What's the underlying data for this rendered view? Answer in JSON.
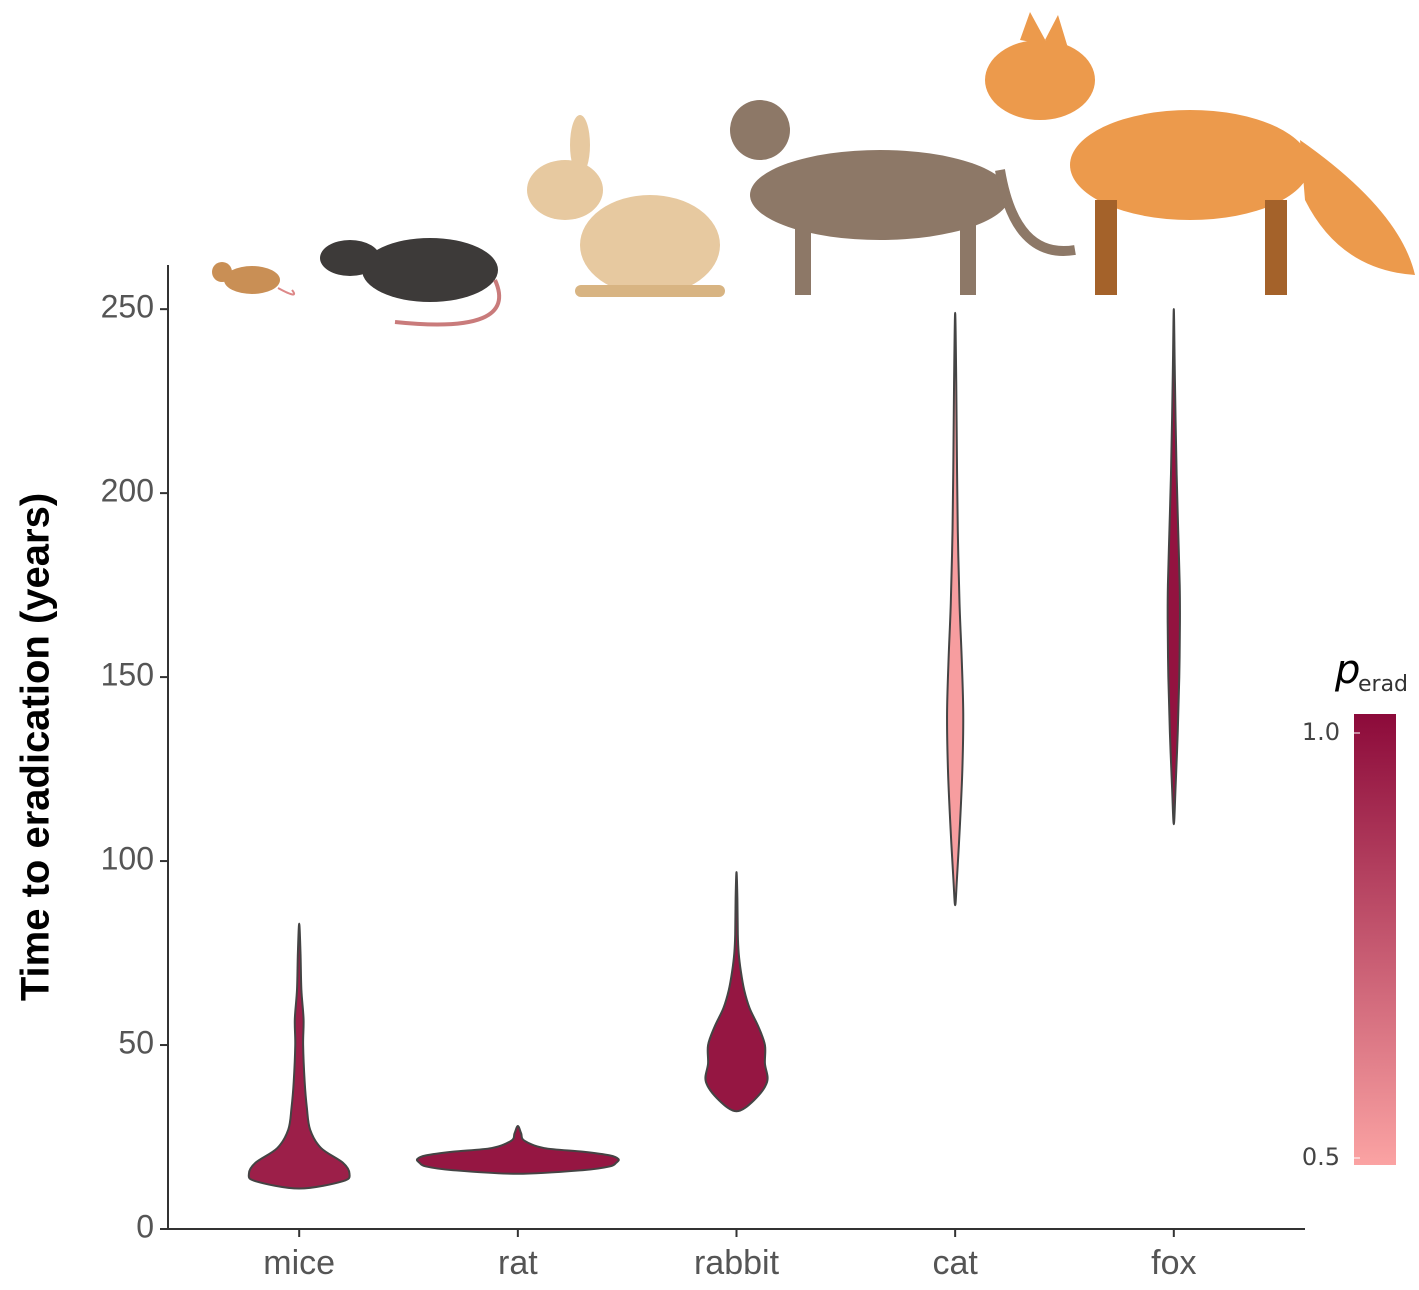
{
  "chart_data": {
    "type": "violin",
    "y_label": "Time to eradication (years)",
    "categories": [
      "mice",
      "rat",
      "rabbit",
      "cat",
      "fox"
    ],
    "ylim": [
      0,
      262
    ],
    "yticks": [
      0,
      50,
      100,
      150,
      200,
      250
    ],
    "violins": [
      {
        "y": [
          11,
          13,
          15,
          18,
          22,
          27,
          33,
          40,
          50,
          57,
          65,
          75,
          83
        ],
        "w": [
          0,
          0.2,
          0.23,
          0.2,
          0.1,
          0.05,
          0.035,
          0.025,
          0.018,
          0.02,
          0.01,
          0.006,
          0
        ],
        "p_erad": 0.93
      },
      {
        "y": [
          15,
          16,
          17,
          18,
          19,
          20,
          21,
          22,
          24,
          26,
          28
        ],
        "w": [
          0,
          0.3,
          0.42,
          0.45,
          0.46,
          0.42,
          0.3,
          0.12,
          0.03,
          0.015,
          0
        ],
        "p_erad": 0.96
      },
      {
        "y": [
          32,
          35,
          40,
          45,
          50,
          55,
          60,
          65,
          70,
          75,
          80,
          90,
          97
        ],
        "w": [
          0,
          0.08,
          0.14,
          0.13,
          0.13,
          0.1,
          0.06,
          0.035,
          0.02,
          0.01,
          0.006,
          0.004,
          0
        ],
        "p_erad": 0.96
      },
      {
        "y": [
          88,
          95,
          110,
          125,
          140,
          155,
          170,
          190,
          210,
          230,
          249
        ],
        "w": [
          0,
          0.008,
          0.022,
          0.033,
          0.037,
          0.03,
          0.02,
          0.012,
          0.008,
          0.005,
          0
        ],
        "p_erad": 0.52
      },
      {
        "y": [
          110,
          120,
          135,
          150,
          165,
          175,
          190,
          205,
          220,
          235,
          250
        ],
        "w": [
          0,
          0.008,
          0.018,
          0.025,
          0.028,
          0.027,
          0.02,
          0.013,
          0.008,
          0.004,
          0
        ],
        "p_erad": 0.97
      }
    ],
    "colorbar_title": {
      "symbol": "p",
      "subscript": "erad"
    },
    "color_low": "#fba3a3",
    "color_high": "#8c0a3a",
    "colorbar_lim": [
      0.5,
      1.0
    ],
    "colorbar_ticks": [
      {
        "value": 0.5,
        "label": "0.5"
      },
      {
        "value": 1.0,
        "label": "1.0"
      }
    ]
  }
}
